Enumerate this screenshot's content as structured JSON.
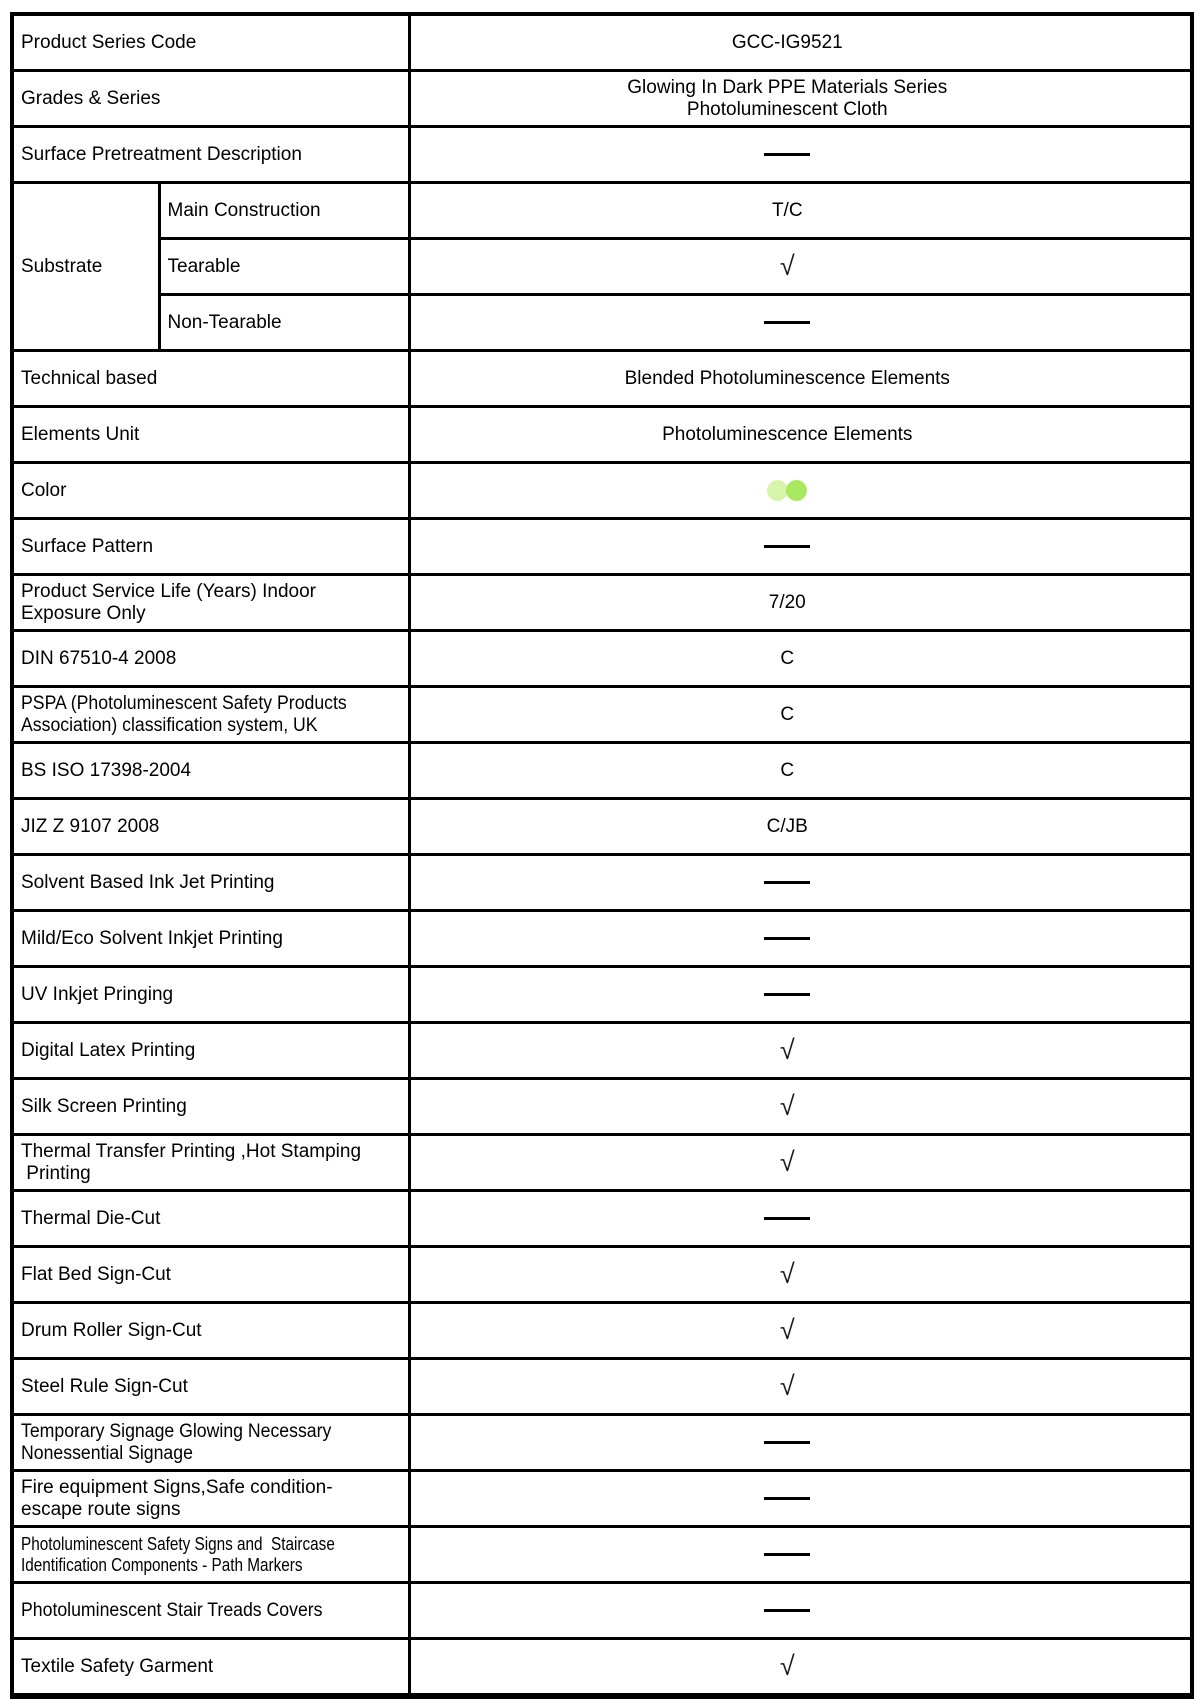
{
  "glyphs": {
    "check": "√",
    "dash": "——"
  },
  "colors": {
    "border": "#000000",
    "text": "#000000",
    "swatch_light_green": "#d6f5ab",
    "swatch_green": "#a8e960"
  },
  "table": {
    "rows": [
      {
        "label_lines": [
          "Product Series Code"
        ],
        "value": {
          "type": "text",
          "text": "GCC-IG9521"
        }
      },
      {
        "label_lines": [
          "Grades & Series"
        ],
        "value": {
          "type": "lines",
          "lines": [
            "Glowing In Dark PPE Materials Series",
            "Photoluminescent Cloth"
          ]
        }
      },
      {
        "label_lines": [
          "Surface Pretreatment Description"
        ],
        "value": {
          "type": "dash"
        }
      },
      {
        "group": {
          "label": "Substrate",
          "span": 3
        },
        "label_lines": [
          "Main Construction"
        ],
        "value": {
          "type": "text",
          "text": "T/C"
        }
      },
      {
        "in_group": true,
        "label_lines": [
          "Tearable"
        ],
        "value": {
          "type": "check"
        }
      },
      {
        "in_group": true,
        "label_lines": [
          "Non-Tearable"
        ],
        "value": {
          "type": "dash"
        }
      },
      {
        "label_lines": [
          "Technical based"
        ],
        "value": {
          "type": "text",
          "text": "Blended Photoluminescence Elements"
        }
      },
      {
        "label_lines": [
          "Elements Unit"
        ],
        "value": {
          "type": "text",
          "text": "Photoluminescence Elements"
        }
      },
      {
        "label_lines": [
          "Color"
        ],
        "value": {
          "type": "swatches"
        }
      },
      {
        "label_lines": [
          "Surface Pattern"
        ],
        "value": {
          "type": "dash"
        }
      },
      {
        "label_lines": [
          "Product Service Life (Years) Indoor",
          "Exposure Only"
        ],
        "value": {
          "type": "text",
          "text": "7/20"
        }
      },
      {
        "label_lines": [
          "DIN 67510-4 2008"
        ],
        "value": {
          "type": "text",
          "text": "C"
        }
      },
      {
        "label_lines": [
          "PSPA (Photoluminescent Safety Products",
          "Association) classification system, UK"
        ],
        "label_style": "cond1",
        "value": {
          "type": "text",
          "text": "C"
        }
      },
      {
        "label_lines": [
          "BS ISO 17398-2004"
        ],
        "value": {
          "type": "text",
          "text": "C"
        }
      },
      {
        "label_lines": [
          "JIZ Z 9107 2008"
        ],
        "value": {
          "type": "text",
          "text": "C/JB"
        }
      },
      {
        "label_lines": [
          "Solvent Based Ink Jet Printing"
        ],
        "value": {
          "type": "dash"
        }
      },
      {
        "label_lines": [
          "Mild/Eco Solvent Inkjet Printing"
        ],
        "value": {
          "type": "dash"
        }
      },
      {
        "label_lines": [
          "UV Inkjet Pringing"
        ],
        "value": {
          "type": "dash"
        }
      },
      {
        "label_lines": [
          "Digital Latex Printing"
        ],
        "value": {
          "type": "check"
        }
      },
      {
        "label_lines": [
          "Silk Screen Printing"
        ],
        "value": {
          "type": "check"
        }
      },
      {
        "label_lines": [
          "Thermal Transfer Printing ,Hot Stamping",
          " Printing"
        ],
        "value": {
          "type": "check"
        }
      },
      {
        "label_lines": [
          "Thermal Die-Cut"
        ],
        "value": {
          "type": "dash"
        }
      },
      {
        "label_lines": [
          "Flat Bed Sign-Cut"
        ],
        "value": {
          "type": "check"
        }
      },
      {
        "label_lines": [
          "Drum Roller Sign-Cut"
        ],
        "value": {
          "type": "check"
        }
      },
      {
        "label_lines": [
          "Steel Rule Sign-Cut"
        ],
        "value": {
          "type": "check"
        }
      },
      {
        "label_lines": [
          "Temporary Signage Glowing Necessary",
          "Nonessential Signage"
        ],
        "label_style": "cond1",
        "value": {
          "type": "dash"
        }
      },
      {
        "label_lines": [
          "Fire equipment Signs,Safe condition-",
          "escape route signs"
        ],
        "value": {
          "type": "dash"
        }
      },
      {
        "label_lines": [
          "Photoluminescent Safety Signs and  Staircase",
          "Identification Components - Path Markers"
        ],
        "label_style": "cond2",
        "value": {
          "type": "dash"
        }
      },
      {
        "label_lines": [
          "Photoluminescent Stair Treads Covers"
        ],
        "label_style": "cond1",
        "value": {
          "type": "dash"
        }
      },
      {
        "label_lines": [
          "Textile Safety Garment"
        ],
        "value": {
          "type": "check"
        }
      }
    ]
  }
}
